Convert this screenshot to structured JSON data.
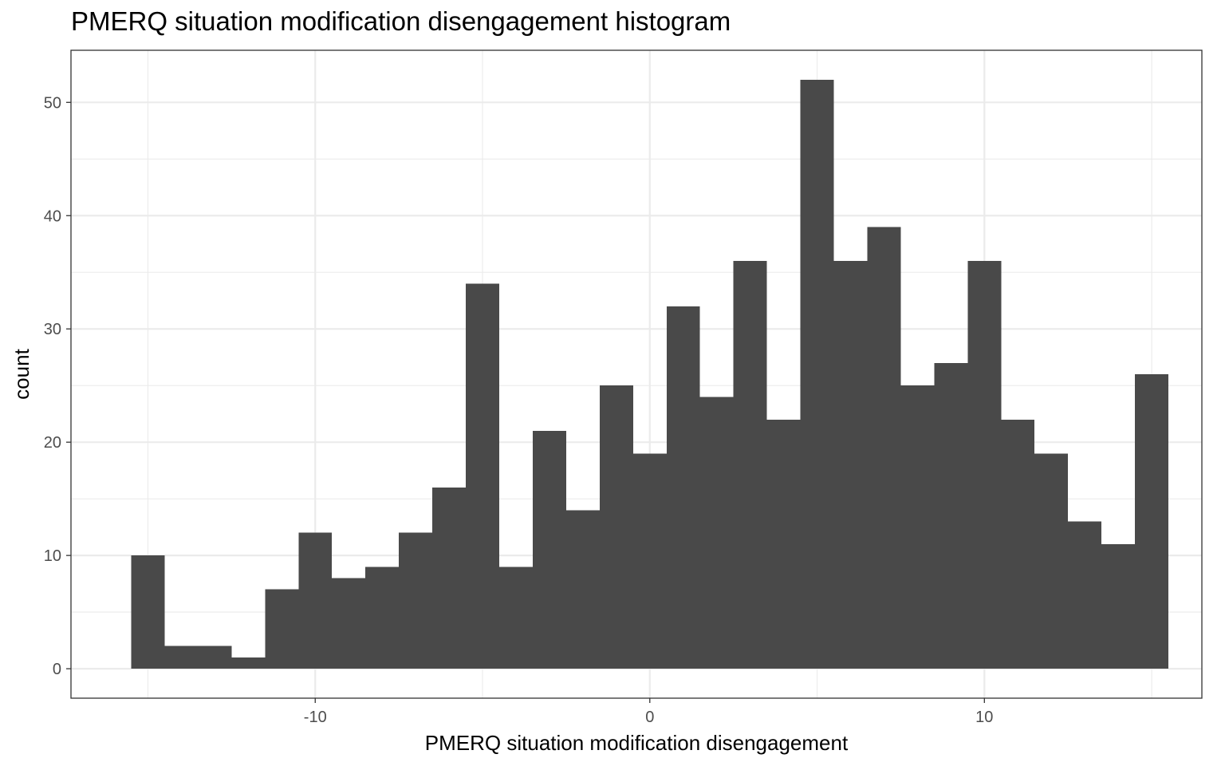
{
  "chart_data": {
    "type": "bar",
    "title": "PMERQ situation modification disengagement histogram",
    "xlabel": "PMERQ situation modification disengagement",
    "ylabel": "count",
    "bin_width": 1,
    "bin_centers": [
      -15,
      -14,
      -13,
      -12,
      -11,
      -10,
      -9,
      -8,
      -7,
      -6,
      -5,
      -4,
      -3,
      -2,
      -1,
      0,
      1,
      2,
      3,
      4,
      5,
      6,
      7,
      8,
      9,
      10,
      11,
      12,
      13,
      14,
      15
    ],
    "values": [
      10,
      2,
      2,
      1,
      7,
      12,
      8,
      9,
      12,
      16,
      34,
      9,
      21,
      14,
      25,
      19,
      32,
      24,
      36,
      22,
      52,
      36,
      39,
      25,
      27,
      36,
      22,
      19,
      13,
      11,
      26
    ],
    "xlim": [
      -17.3,
      16.5
    ],
    "ylim": [
      -2.6,
      54.6
    ],
    "x_ticks": [
      -10,
      0,
      10
    ],
    "x_tick_labels": [
      "-10",
      "0",
      "10"
    ],
    "y_ticks": [
      0,
      10,
      20,
      30,
      40,
      50
    ],
    "y_tick_labels": [
      "0",
      "10",
      "20",
      "30",
      "40",
      "50"
    ],
    "grid": true,
    "bar_color": "#494949",
    "grid_color": "#ebebeb",
    "panel_border_color": "#333333"
  }
}
